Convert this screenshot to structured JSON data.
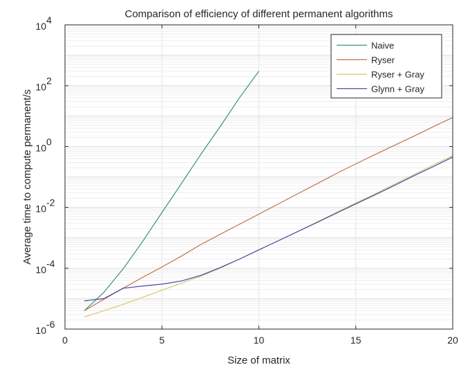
{
  "chart_data": {
    "type": "line",
    "title": "Comparison of efficiency of different permanent algorithms",
    "xlabel": "Size of matrix",
    "ylabel": "Average time to compute permanent/s",
    "xlim": [
      0,
      20
    ],
    "ylim": [
      1e-06,
      10000
    ],
    "y_scale": "log",
    "grid": true,
    "legend_position": "top-right",
    "x_ticks": [
      {
        "value": 0,
        "label": "0"
      },
      {
        "value": 5,
        "label": "5"
      },
      {
        "value": 10,
        "label": "10"
      },
      {
        "value": 15,
        "label": "15"
      },
      {
        "value": 20,
        "label": "20"
      }
    ],
    "y_ticks": [
      {
        "value": 1e-06,
        "base": "10",
        "exp": "-6"
      },
      {
        "value": 0.0001,
        "base": "10",
        "exp": "-4"
      },
      {
        "value": 0.01,
        "base": "10",
        "exp": "-2"
      },
      {
        "value": 1,
        "base": "10",
        "exp": "0"
      },
      {
        "value": 100,
        "base": "10",
        "exp": "2"
      },
      {
        "value": 10000,
        "base": "10",
        "exp": "4"
      }
    ],
    "series": [
      {
        "name": "Naive",
        "color": "#3a8f7f",
        "x": [
          1,
          2,
          3,
          4,
          5,
          6,
          7,
          8,
          9,
          10
        ],
        "y": [
          4e-06,
          1.6e-05,
          9.5e-05,
          0.00075,
          0.0068,
          0.06,
          0.55,
          4.5,
          40,
          300
        ]
      },
      {
        "name": "Ryser",
        "color": "#c0714a",
        "x": [
          1,
          2,
          3,
          4,
          5,
          6,
          7,
          8,
          9,
          10,
          11,
          12,
          13,
          14,
          15,
          16,
          17,
          18,
          19,
          20
        ],
        "y": [
          4e-06,
          9.5e-06,
          2.2e-05,
          5e-05,
          0.00011,
          0.00025,
          0.0006,
          0.0013,
          0.0028,
          0.006,
          0.013,
          0.028,
          0.06,
          0.13,
          0.27,
          0.55,
          1.1,
          2.2,
          4.5,
          9.0
        ]
      },
      {
        "name": "Ryser + Gray",
        "color": "#d9c76a",
        "x": [
          1,
          2,
          3,
          4,
          5,
          6,
          7,
          8,
          9,
          10,
          11,
          12,
          13,
          14,
          15,
          16,
          17,
          18,
          19,
          20
        ],
        "y": [
          2.5e-06,
          4e-06,
          6.5e-06,
          1.1e-05,
          1.9e-05,
          3.2e-05,
          5.5e-05,
          0.0001,
          0.0002,
          0.0004,
          0.0008,
          0.0016,
          0.0033,
          0.0068,
          0.014,
          0.028,
          0.058,
          0.12,
          0.25,
          0.5
        ]
      },
      {
        "name": "Glynn + Gray",
        "color": "#4a47a3",
        "x": [
          1,
          2,
          3,
          4,
          5,
          6,
          7,
          8,
          9,
          10,
          11,
          12,
          13,
          14,
          15,
          16,
          17,
          18,
          19,
          20
        ],
        "y": [
          8.5e-06,
          1e-05,
          2.2e-05,
          2.6e-05,
          3e-05,
          3.8e-05,
          5.8e-05,
          0.000105,
          0.0002,
          0.0004,
          0.0008,
          0.0016,
          0.0032,
          0.0065,
          0.013,
          0.026,
          0.053,
          0.11,
          0.22,
          0.45
        ]
      }
    ]
  }
}
